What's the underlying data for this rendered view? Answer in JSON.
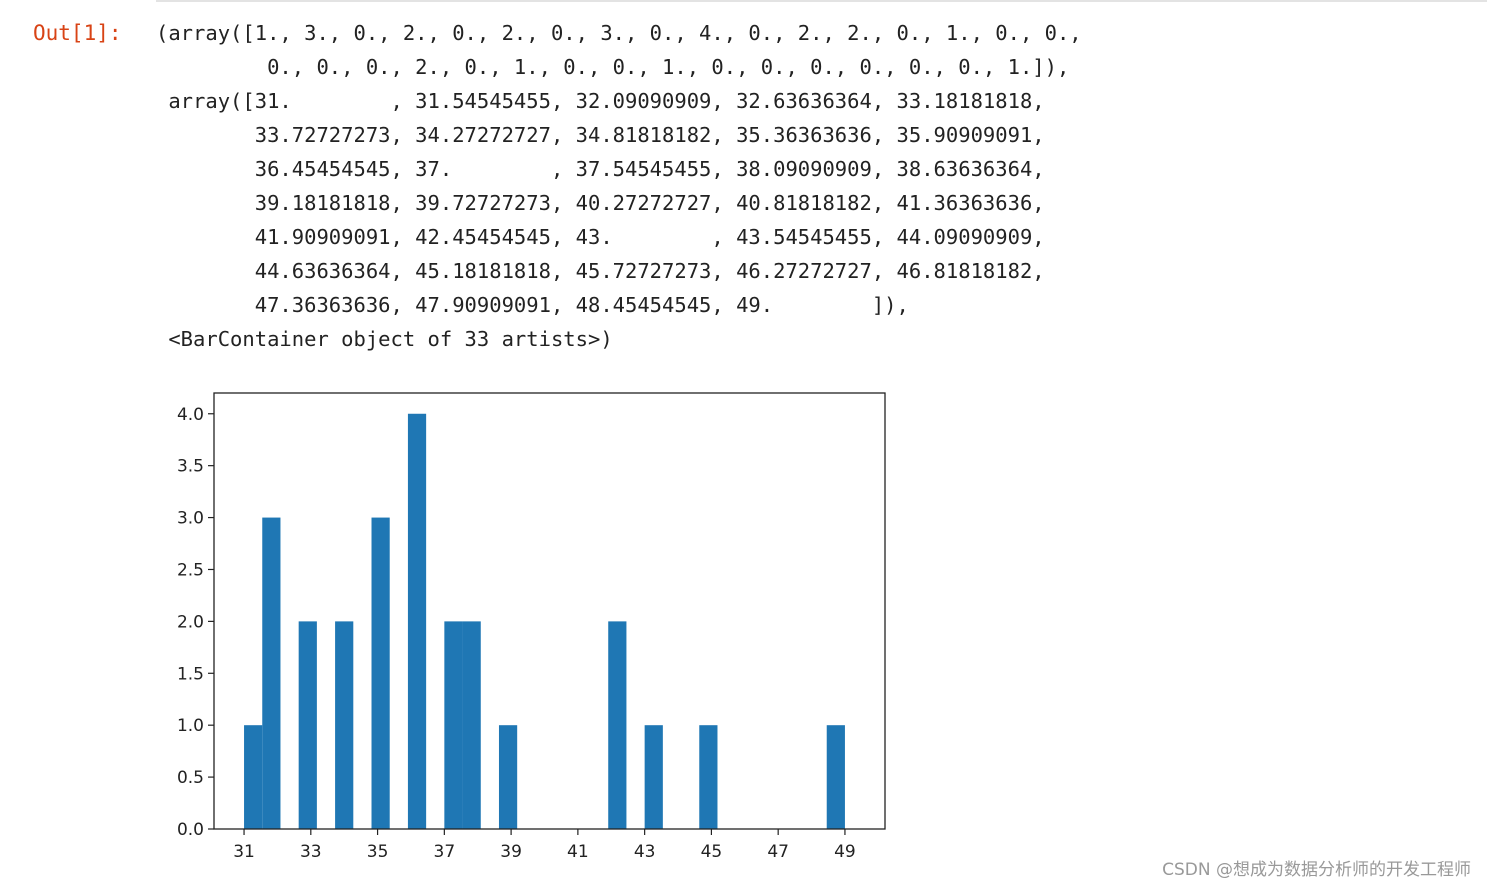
{
  "cell": {
    "prompt": "Out[1]:",
    "lines": [
      "(array([1., 3., 0., 2., 0., 2., 0., 3., 0., 4., 0., 2., 2., 0., 1., 0., 0.,",
      "         0., 0., 0., 2., 0., 1., 0., 0., 1., 0., 0., 0., 0., 0., 0., 1.]),",
      " array([31.        , 31.54545455, 32.09090909, 32.63636364, 33.18181818,",
      "        33.72727273, 34.27272727, 34.81818182, 35.36363636, 35.90909091,",
      "        36.45454545, 37.        , 37.54545455, 38.09090909, 38.63636364,",
      "        39.18181818, 39.72727273, 40.27272727, 40.81818182, 41.36363636,",
      "        41.90909091, 42.45454545, 43.        , 43.54545455, 44.09090909,",
      "        44.63636364, 45.18181818, 45.72727273, 46.27272727, 46.81818182,",
      "        47.36363636, 47.90909091, 48.45454545, 49.        ]),",
      " <BarContainer object of 33 artists>)"
    ]
  },
  "chart_data": {
    "type": "bar",
    "bin_edges": [
      31,
      31.54545455,
      32.09090909,
      32.63636364,
      33.18181818,
      33.72727273,
      34.27272727,
      34.81818182,
      35.36363636,
      35.90909091,
      36.45454545,
      37,
      37.54545455,
      38.09090909,
      38.63636364,
      39.18181818,
      39.72727273,
      40.27272727,
      40.81818182,
      41.36363636,
      41.90909091,
      42.45454545,
      43,
      43.54545455,
      44.09090909,
      44.63636364,
      45.18181818,
      45.72727273,
      46.27272727,
      46.81818182,
      47.36363636,
      47.90909091,
      48.45454545,
      49
    ],
    "values": [
      1,
      3,
      0,
      2,
      0,
      2,
      0,
      3,
      0,
      4,
      0,
      2,
      2,
      0,
      1,
      0,
      0,
      0,
      0,
      0,
      2,
      0,
      1,
      0,
      0,
      1,
      0,
      0,
      0,
      0,
      0,
      0,
      1
    ],
    "xlim": [
      30.1,
      50.2
    ],
    "ylim": [
      0,
      4.2
    ],
    "xticks": [
      31,
      33,
      35,
      37,
      39,
      41,
      43,
      45,
      47,
      49
    ],
    "xtick_labels": [
      "31",
      "33",
      "35",
      "37",
      "39",
      "41",
      "43",
      "45",
      "47",
      "49"
    ],
    "yticks": [
      0,
      0.5,
      1,
      1.5,
      2,
      2.5,
      3,
      3.5,
      4
    ],
    "ytick_labels": [
      "0.0",
      "0.5",
      "1.0",
      "1.5",
      "2.0",
      "2.5",
      "3.0",
      "3.5",
      "4.0"
    ],
    "bar_color": "#1f77b4",
    "title": "",
    "xlabel": "",
    "ylabel": "",
    "grid": false
  },
  "watermark": "CSDN @想成为数据分析师的开发工程师",
  "colors": {
    "prompt": "#d84315",
    "text": "#222222",
    "bar": "#1f77b4",
    "axes": "#222222"
  }
}
